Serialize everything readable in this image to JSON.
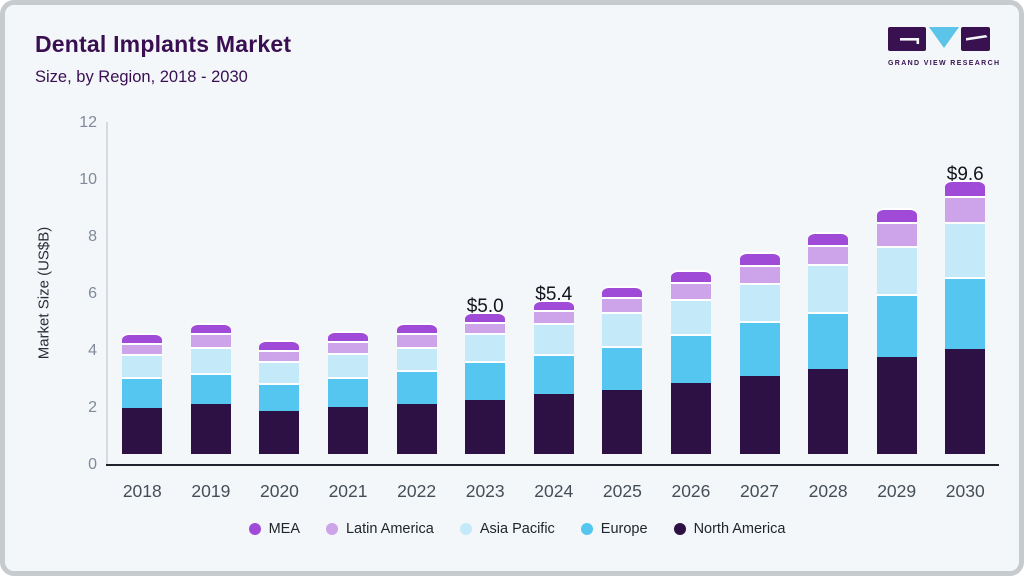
{
  "header": {
    "title": "Dental Implants Market",
    "subtitle": "Size, by Region, 2018 - 2030"
  },
  "logo": {
    "text": "GRAND VIEW RESEARCH",
    "dark_color": "#3a1150",
    "accent_color": "#5bc4e8"
  },
  "chart_data": {
    "type": "bar",
    "stacked": true,
    "title": "Dental Implants Market",
    "xlabel": "",
    "ylabel": "Market Size (US$B)",
    "ylim": [
      0,
      12
    ],
    "yticks": [
      0,
      2,
      4,
      6,
      8,
      10,
      12
    ],
    "grid": false,
    "categories": [
      "2018",
      "2019",
      "2020",
      "2021",
      "2022",
      "2023",
      "2024",
      "2025",
      "2026",
      "2027",
      "2028",
      "2029",
      "2030"
    ],
    "series": [
      {
        "name": "North America",
        "color": "#2d1145",
        "values": [
          1.6,
          1.75,
          1.5,
          1.65,
          1.75,
          1.9,
          2.1,
          2.25,
          2.5,
          2.75,
          3.0,
          3.4,
          3.7
        ]
      },
      {
        "name": "Europe",
        "color": "#55c6f0",
        "values": [
          1.1,
          1.1,
          1.0,
          1.05,
          1.2,
          1.35,
          1.4,
          1.55,
          1.7,
          1.9,
          2.0,
          2.2,
          2.5
        ]
      },
      {
        "name": "Asia Pacific",
        "color": "#c4e9f9",
        "values": [
          0.8,
          0.9,
          0.75,
          0.85,
          0.8,
          1.0,
          1.1,
          1.2,
          1.25,
          1.35,
          1.65,
          1.7,
          1.95
        ]
      },
      {
        "name": "Latin America",
        "color": "#cda3e9",
        "values": [
          0.4,
          0.48,
          0.4,
          0.4,
          0.5,
          0.4,
          0.45,
          0.5,
          0.6,
          0.65,
          0.7,
          0.85,
          0.9
        ]
      },
      {
        "name": "MEA",
        "color": "#a04bd8",
        "values": [
          0.35,
          0.37,
          0.35,
          0.35,
          0.35,
          0.35,
          0.35,
          0.4,
          0.4,
          0.45,
          0.45,
          0.5,
          0.55
        ]
      }
    ],
    "totals": [
      4.25,
      4.6,
      4.0,
      4.3,
      4.6,
      5.0,
      5.4,
      5.9,
      6.45,
      7.1,
      7.8,
      8.65,
      9.6
    ],
    "annotations": [
      {
        "category": "2023",
        "label": "$5.0"
      },
      {
        "category": "2024",
        "label": "$5.4"
      },
      {
        "category": "2030",
        "label": "$9.6"
      }
    ],
    "legend": {
      "position": "bottom",
      "order": [
        "MEA",
        "Latin America",
        "Asia Pacific",
        "Europe",
        "North America"
      ]
    }
  }
}
